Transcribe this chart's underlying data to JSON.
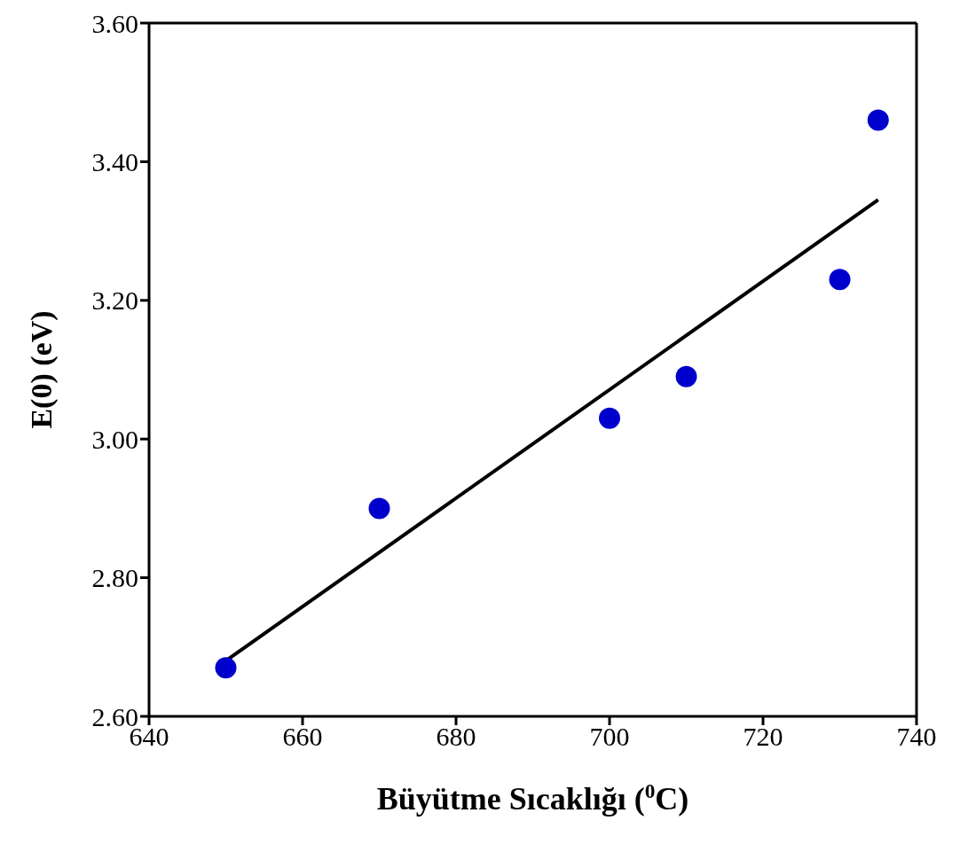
{
  "chart_data": {
    "type": "scatter",
    "xlabel": "Büyütme Sıcaklığı ($^{0}$C)",
    "ylabel": "E(0) (eV)",
    "xlim": [
      640,
      740
    ],
    "xticks": [
      640,
      660,
      680,
      700,
      720,
      740
    ],
    "ylim": [
      2.6,
      3.6
    ],
    "yticks": [
      {
        "value": 2.6,
        "label": "2.60"
      },
      {
        "value": 2.8,
        "label": "2.80"
      },
      {
        "value": 3.0,
        "label": "3.00"
      },
      {
        "value": 3.2,
        "label": "3.20"
      },
      {
        "value": 3.4,
        "label": "3.40"
      },
      {
        "value": 3.6,
        "label": "3.60"
      }
    ],
    "grid": false,
    "legend": false,
    "series": [
      {
        "marker": "circle",
        "color": "#0000cc",
        "x": [
          650,
          670,
          700,
          710,
          730,
          735
        ],
        "values": [
          2.67,
          2.9,
          3.03,
          3.09,
          3.23,
          3.46
        ]
      },
      {
        "type": "line",
        "marker": "none",
        "color": "#000000",
        "line_style": "solid",
        "x": [
          650,
          735
        ],
        "values": [
          2.68,
          3.345
        ]
      }
    ]
  }
}
